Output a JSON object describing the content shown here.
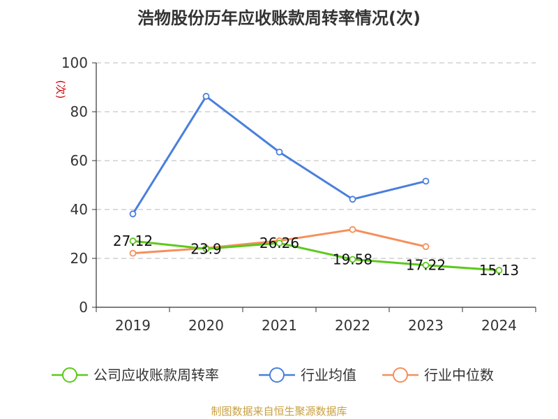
{
  "chart_data": {
    "type": "line",
    "title": "浩物股份历年应收账款周转率情况(次)",
    "ylabel": "(次)",
    "categories": [
      "2019",
      "2020",
      "2021",
      "2022",
      "2023",
      "2024"
    ],
    "ylim": [
      0,
      100
    ],
    "yticks": [
      "0",
      "20",
      "40",
      "60",
      "80",
      "100"
    ],
    "grid": true,
    "legend_position": "bottom",
    "series": [
      {
        "name": "公司应收账款周转率",
        "color": "#5cc91b",
        "values": [
          27.12,
          23.9,
          26.26,
          19.58,
          17.22,
          15.13
        ],
        "labels": [
          "27.12",
          "23.9",
          "26.26",
          "19.58",
          "17.22",
          "15.13"
        ]
      },
      {
        "name": "行业均值",
        "color": "#4a7fdc",
        "values": [
          38.2,
          86.3,
          63.5,
          44.2,
          51.6,
          null
        ]
      },
      {
        "name": "行业中位数",
        "color": "#f58f5a",
        "values": [
          22.1,
          24.2,
          27.2,
          31.8,
          24.8,
          null
        ]
      }
    ]
  },
  "source_note": "制图数据来自恒生聚源数据库"
}
